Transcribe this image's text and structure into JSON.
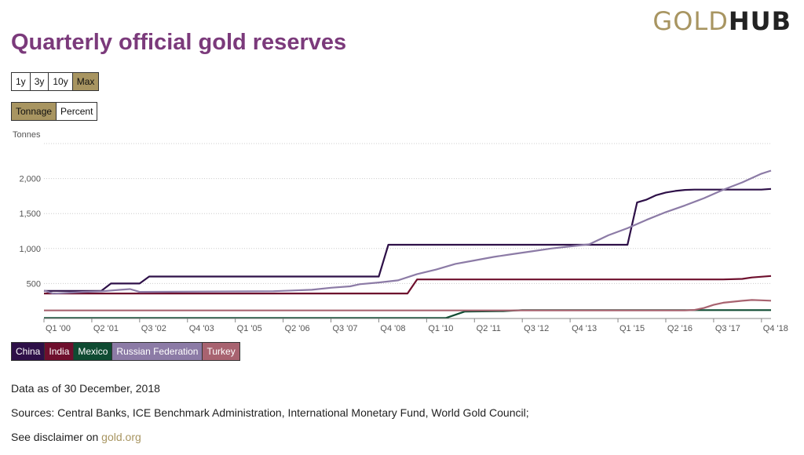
{
  "logo": {
    "part1": "GOLD",
    "part2": "HUB"
  },
  "title": "Quarterly official gold reserves",
  "range_buttons": [
    {
      "label": "1y",
      "active": false
    },
    {
      "label": "3y",
      "active": false
    },
    {
      "label": "10y",
      "active": false
    },
    {
      "label": "Max",
      "active": true
    }
  ],
  "measure_buttons": [
    {
      "label": "Tonnage",
      "active": true
    },
    {
      "label": "Percent",
      "active": false
    }
  ],
  "footer": {
    "date_text": "Data as of 30 December, 2018",
    "sources_text": "Sources: Central Banks, ICE Benchmark Administration, International Monetary Fund, World Gold Council;",
    "disclaimer_prefix": "See disclaimer on",
    "disclaimer_link": "gold.org"
  },
  "colors": {
    "accent": "#a89561",
    "title": "#7b3a7b",
    "grid": "#cccccc"
  },
  "chart_data": {
    "type": "line",
    "ylabel": "Tonnes",
    "ylim": [
      0,
      2500
    ],
    "yticks": [
      500,
      1000,
      1500,
      2000
    ],
    "ytick_labels": [
      "500",
      "1,000",
      "1,500",
      "2,000"
    ],
    "xlim": [
      2000.0,
      2019.0
    ],
    "xticks": [
      2000.0,
      2001.25,
      2002.5,
      2003.75,
      2005.0,
      2006.25,
      2007.5,
      2008.75,
      2010.0,
      2011.25,
      2012.5,
      2013.75,
      2015.0,
      2016.25,
      2017.5,
      2018.75
    ],
    "xtick_labels": [
      "Q1 '00",
      "Q2 '01",
      "Q3 '02",
      "Q4 '03",
      "Q1 '05",
      "Q2 '06",
      "Q3 '07",
      "Q4 '08",
      "Q1 '10",
      "Q2 '11",
      "Q3 '12",
      "Q4 '13",
      "Q1 '15",
      "Q2 '16",
      "Q3 '17",
      "Q4 '18"
    ],
    "grid": true,
    "legend_placement": "bottom-left",
    "series": [
      {
        "name": "China",
        "color": "#2e1048",
        "points": [
          [
            2000.0,
            395
          ],
          [
            2001.5,
            395
          ],
          [
            2001.75,
            500
          ],
          [
            2002.5,
            500
          ],
          [
            2002.75,
            600
          ],
          [
            2008.75,
            600
          ],
          [
            2009.0,
            1054
          ],
          [
            2015.25,
            1054
          ],
          [
            2015.5,
            1658
          ],
          [
            2015.75,
            1700
          ],
          [
            2016.0,
            1762
          ],
          [
            2016.25,
            1800
          ],
          [
            2016.5,
            1823
          ],
          [
            2016.75,
            1838
          ],
          [
            2017.0,
            1842
          ],
          [
            2018.75,
            1842
          ],
          [
            2019.0,
            1852
          ]
        ]
      },
      {
        "name": "India",
        "color": "#6e0f2d",
        "points": [
          [
            2000.0,
            358
          ],
          [
            2009.5,
            358
          ],
          [
            2009.75,
            558
          ],
          [
            2017.75,
            558
          ],
          [
            2018.25,
            566
          ],
          [
            2018.5,
            586
          ],
          [
            2019.0,
            608
          ]
        ]
      },
      {
        "name": "Mexico",
        "color": "#0f4b32",
        "points": [
          [
            2000.0,
            7
          ],
          [
            2010.5,
            7
          ],
          [
            2011.0,
            100
          ],
          [
            2012.0,
            105
          ],
          [
            2012.5,
            120
          ],
          [
            2019.0,
            120
          ]
        ]
      },
      {
        "name": "Russian Federation",
        "color": "#8c7ba6",
        "points": [
          [
            2000.0,
            400
          ],
          [
            2000.25,
            355
          ],
          [
            2001.0,
            380
          ],
          [
            2001.5,
            388
          ],
          [
            2002.0,
            410
          ],
          [
            2002.25,
            420
          ],
          [
            2002.5,
            380
          ],
          [
            2006.0,
            390
          ],
          [
            2006.5,
            400
          ],
          [
            2007.0,
            410
          ],
          [
            2007.5,
            440
          ],
          [
            2008.0,
            460
          ],
          [
            2008.25,
            490
          ],
          [
            2008.75,
            515
          ],
          [
            2009.25,
            545
          ],
          [
            2009.75,
            635
          ],
          [
            2010.25,
            700
          ],
          [
            2010.75,
            780
          ],
          [
            2011.25,
            830
          ],
          [
            2011.75,
            880
          ],
          [
            2012.25,
            920
          ],
          [
            2012.75,
            960
          ],
          [
            2013.25,
            1000
          ],
          [
            2013.75,
            1030
          ],
          [
            2014.25,
            1060
          ],
          [
            2014.75,
            1190
          ],
          [
            2015.25,
            1290
          ],
          [
            2015.75,
            1410
          ],
          [
            2016.25,
            1520
          ],
          [
            2016.75,
            1615
          ],
          [
            2017.25,
            1720
          ],
          [
            2017.75,
            1840
          ],
          [
            2018.25,
            1945
          ],
          [
            2018.75,
            2070
          ],
          [
            2019.0,
            2113
          ]
        ]
      },
      {
        "name": "Turkey",
        "color": "#a86370",
        "points": [
          [
            2000.0,
            116
          ],
          [
            2016.75,
            116
          ],
          [
            2017.0,
            122
          ],
          [
            2017.25,
            150
          ],
          [
            2017.5,
            195
          ],
          [
            2017.75,
            225
          ],
          [
            2018.0,
            240
          ],
          [
            2018.25,
            253
          ],
          [
            2018.5,
            265
          ],
          [
            2018.75,
            260
          ],
          [
            2019.0,
            255
          ]
        ]
      }
    ]
  }
}
